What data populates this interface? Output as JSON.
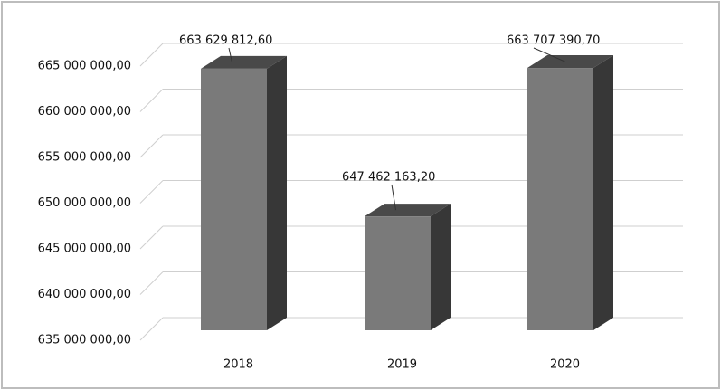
{
  "chart_data": {
    "type": "bar3d",
    "categories": [
      "2018",
      "2019",
      "2020"
    ],
    "values": [
      663629812.6,
      647462163.2,
      663707390.7
    ],
    "value_labels": [
      "663 629 812,60",
      "647 462 163,20",
      "663 707 390,70"
    ],
    "color": "#7a7a7a",
    "ylim": [
      635000000,
      665000000
    ],
    "yticks": [
      {
        "value": 635000000,
        "label": "635 000 000,00"
      },
      {
        "value": 640000000,
        "label": "640 000 000,00"
      },
      {
        "value": 645000000,
        "label": "645 000 000,00"
      },
      {
        "value": 650000000,
        "label": "650 000 000,00"
      },
      {
        "value": 655000000,
        "label": "655 000 000,00"
      },
      {
        "value": 660000000,
        "label": "660 000 000,00"
      },
      {
        "value": 665000000,
        "label": "665 000 000,00"
      }
    ],
    "grid": true
  }
}
